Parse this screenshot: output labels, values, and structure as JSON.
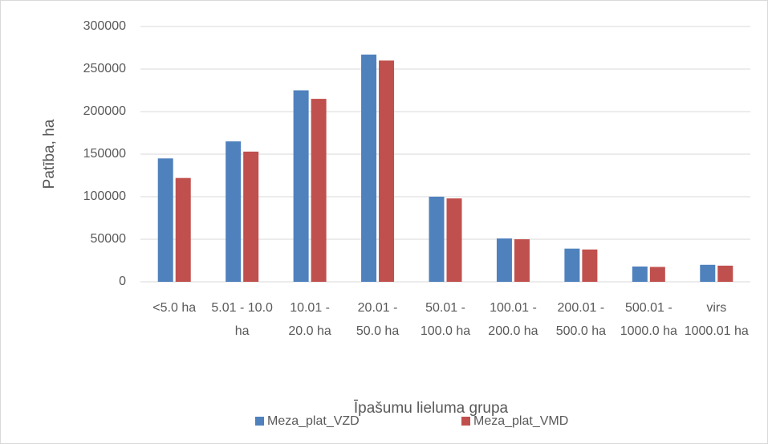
{
  "chart_data": {
    "type": "bar",
    "x_label": "Īpašumu lieluma grupa",
    "y_label": "Patība, ha",
    "categories": [
      "<5.0 ha",
      "5.01 - 10.0 ha",
      "10.01 - 20.0 ha",
      "20.01 - 50.0 ha",
      "50.01 - 100.0 ha",
      "100.01 - 200.0 ha",
      "200.01 - 500.0 ha",
      "500.01 - 1000.0 ha",
      "virs 1000.01 ha"
    ],
    "series": [
      {
        "name": "Meza_plat_VZD",
        "color": "#4f81bd",
        "values": [
          145000,
          165000,
          225000,
          267000,
          100000,
          51000,
          39000,
          18000,
          20000
        ]
      },
      {
        "name": "Meza_plat_VMD",
        "color": "#c0504d",
        "values": [
          122000,
          153000,
          215000,
          260000,
          98000,
          50000,
          38000,
          17500,
          19000
        ]
      }
    ],
    "ylim": [
      0,
      300000
    ],
    "yticks": [
      0,
      50000,
      100000,
      150000,
      200000,
      250000,
      300000
    ],
    "grid": true,
    "legend": "bottom"
  }
}
